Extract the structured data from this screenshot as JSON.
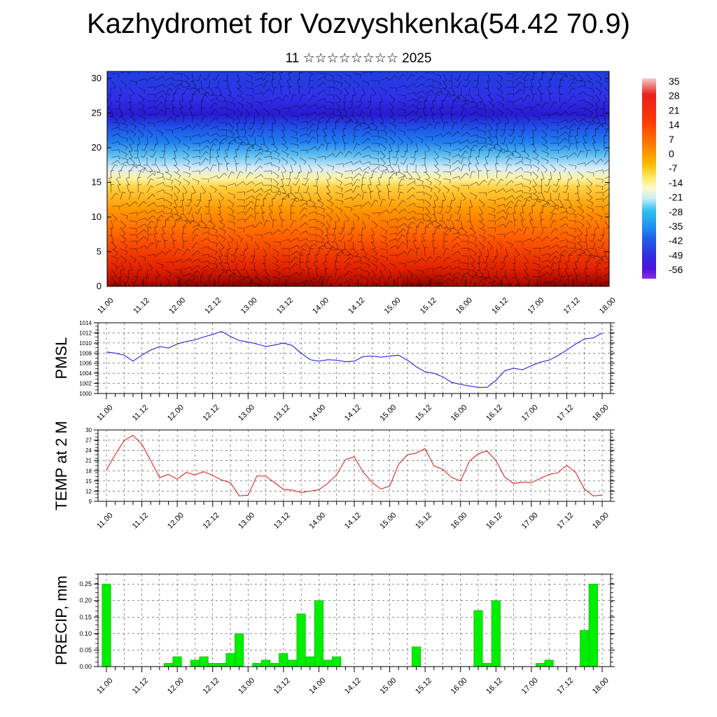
{
  "title": "Kazhydromet for Vozvyshkenka(54.42 70.9)",
  "subtitle": "11 ☆☆☆☆☆☆☆☆ 2025",
  "colors": {
    "pmsl_line": "#1010e0",
    "temp_line": "#e01010",
    "precip_bar": "#00ee00",
    "bar_edge": "#000000"
  },
  "chart_data": [
    {
      "type": "heatmap",
      "name": "cross-section",
      "x_tick_labels": [
        "11.00",
        "11.12",
        "12.00",
        "12.12",
        "13.00",
        "13.12",
        "14.00",
        "14.12",
        "15.00",
        "15.12",
        "16.00",
        "16.12",
        "17.00",
        "17.12",
        "18.00"
      ],
      "xlim": [
        0,
        168
      ],
      "y_ticks": [
        0,
        5,
        10,
        15,
        20,
        25,
        30
      ],
      "ylim": [
        0,
        31
      ],
      "colorbar_labels": [
        "35",
        "28",
        "21",
        "14",
        "7",
        "0",
        "-7",
        "-14",
        "-21",
        "-28",
        "-35",
        "-42",
        "-49",
        "-56"
      ],
      "colorbar_range": [
        -63,
        42
      ],
      "overlay": "wind barbs"
    },
    {
      "type": "line",
      "ylabel": "PMSL",
      "x_tick_labels": [
        "11.00",
        "11.12",
        "12.00",
        "12.12",
        "13.00",
        "13.12",
        "14.00",
        "14.12",
        "15.00",
        "15.12",
        "16.00",
        "16.12",
        "17.00",
        "17.12",
        "18.00"
      ],
      "y_ticks": [
        1000,
        1002,
        1004,
        1006,
        1008,
        1010,
        1012,
        1014
      ],
      "ylim": [
        1000,
        1014
      ],
      "grid": true,
      "x": [
        0,
        3,
        6,
        9,
        12,
        15,
        18,
        21,
        24,
        27,
        30,
        33,
        36,
        39,
        42,
        45,
        48,
        51,
        54,
        57,
        60,
        63,
        66,
        69,
        72,
        75,
        78,
        81,
        84,
        87,
        90,
        93,
        96,
        99,
        102,
        105,
        108,
        111,
        114,
        117,
        120,
        123,
        126,
        129,
        132,
        135,
        138,
        141,
        144,
        147,
        150,
        153,
        156,
        159,
        162,
        165,
        168
      ],
      "y": [
        1008.2,
        1008.0,
        1007.6,
        1006.4,
        1007.6,
        1008.6,
        1009.3,
        1009.0,
        1009.8,
        1010.3,
        1010.6,
        1011.2,
        1011.7,
        1012.3,
        1011.3,
        1010.5,
        1010.2,
        1009.8,
        1009.3,
        1009.6,
        1010.0,
        1009.5,
        1008.0,
        1006.7,
        1006.4,
        1006.7,
        1006.6,
        1006.3,
        1006.4,
        1007.3,
        1007.4,
        1007.2,
        1007.4,
        1007.6,
        1006.6,
        1005.3,
        1004.3,
        1004.0,
        1003.3,
        1002.2,
        1001.8,
        1001.5,
        1001.2,
        1001.2,
        1002.6,
        1004.5,
        1005.0,
        1004.7,
        1005.5,
        1006.2,
        1006.6,
        1007.5,
        1008.6,
        1009.8,
        1010.8,
        1011.0,
        1012.0
      ]
    },
    {
      "type": "line",
      "ylabel": "TEMP at 2 M",
      "x_tick_labels": [
        "11.00",
        "11.12",
        "12.00",
        "12.12",
        "13.00",
        "13.12",
        "14.00",
        "14.12",
        "15.00",
        "15.12",
        "16.00",
        "16.12",
        "17.00",
        "17.12",
        "18.00"
      ],
      "y_ticks": [
        9,
        12,
        15,
        18,
        21,
        24,
        27,
        30
      ],
      "ylim": [
        9,
        30
      ],
      "grid": true,
      "x": [
        0,
        3,
        6,
        9,
        12,
        15,
        18,
        21,
        24,
        27,
        30,
        33,
        36,
        39,
        42,
        45,
        48,
        51,
        54,
        57,
        60,
        63,
        66,
        69,
        72,
        75,
        78,
        81,
        84,
        87,
        90,
        93,
        96,
        99,
        102,
        105,
        108,
        111,
        114,
        117,
        120,
        123,
        126,
        129,
        132,
        135,
        138,
        141,
        144,
        147,
        150,
        153,
        156,
        159,
        162,
        165,
        168
      ],
      "y": [
        18.2,
        22.8,
        26.9,
        28.4,
        25.8,
        21.0,
        16.0,
        16.9,
        15.5,
        17.5,
        16.8,
        17.7,
        16.6,
        15.3,
        14.5,
        10.6,
        10.8,
        16.5,
        16.4,
        14.5,
        12.5,
        12.3,
        11.6,
        12.0,
        12.4,
        14.3,
        16.8,
        21.3,
        22.1,
        17.6,
        14.6,
        12.6,
        13.5,
        19.9,
        22.7,
        23.2,
        24.5,
        19.4,
        18.4,
        16.0,
        15.0,
        20.8,
        23.0,
        23.8,
        21.0,
        16.1,
        14.3,
        14.6,
        14.5,
        15.7,
        16.9,
        17.4,
        19.6,
        17.5,
        12.6,
        10.6,
        10.8
      ]
    },
    {
      "type": "bar",
      "ylabel": "PRECIP, mm",
      "x_tick_labels": [
        "11.00",
        "11.12",
        "12.00",
        "12.12",
        "13.00",
        "13.12",
        "14.00",
        "14.12",
        "15.00",
        "15.12",
        "16.00",
        "16.12",
        "17.00",
        "17.12",
        "18.00"
      ],
      "y_tick_labels": [
        "0.00",
        "0.05",
        "0.10",
        "0.15",
        "0.20",
        "0.25"
      ],
      "ylim": [
        0,
        0.28
      ],
      "grid": true,
      "x": [
        0,
        3,
        6,
        9,
        12,
        15,
        18,
        21,
        24,
        27,
        30,
        33,
        36,
        39,
        42,
        45,
        48,
        51,
        54,
        57,
        60,
        63,
        66,
        69,
        72,
        75,
        78,
        81,
        84,
        87,
        90,
        93,
        96,
        99,
        102,
        105,
        108,
        111,
        114,
        117,
        120,
        123,
        126,
        129,
        132,
        135,
        138,
        141,
        144,
        147,
        150,
        153,
        156,
        159,
        162,
        165,
        168
      ],
      "values": [
        0.25,
        0,
        0,
        0,
        0,
        0,
        0,
        0.01,
        0.03,
        0,
        0.02,
        0.03,
        0.01,
        0.01,
        0.04,
        0.1,
        0,
        0.01,
        0.02,
        0.01,
        0.04,
        0.02,
        0.16,
        0.03,
        0.2,
        0.02,
        0.03,
        0,
        0,
        0,
        0,
        0,
        0,
        0,
        0,
        0.06,
        0,
        0,
        0,
        0,
        0,
        0,
        0.17,
        0.01,
        0.2,
        0,
        0,
        0,
        0,
        0.01,
        0.02,
        0,
        0,
        0,
        0.11,
        0.25,
        0
      ]
    }
  ]
}
